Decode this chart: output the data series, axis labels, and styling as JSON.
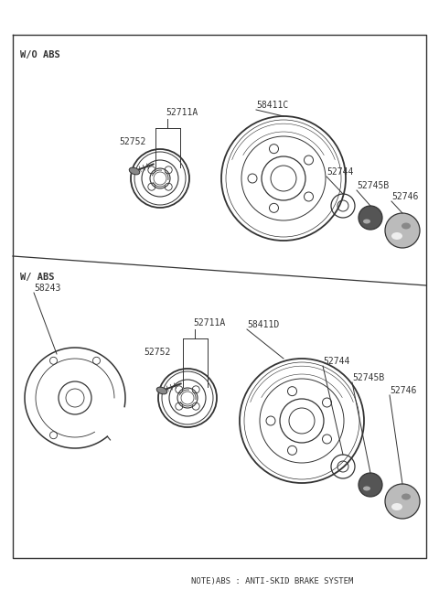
{
  "bg_color": "#ffffff",
  "border_color": "#333333",
  "line_color": "#333333",
  "text_color": "#333333",
  "fig_width": 4.8,
  "fig_height": 6.57,
  "dpi": 100,
  "note_text": "NOTE)ABS : ANTI-SKID BRAKE SYSTEM",
  "wo_abs_label": "W/O ABS",
  "w_abs_label": "W/ ABS"
}
